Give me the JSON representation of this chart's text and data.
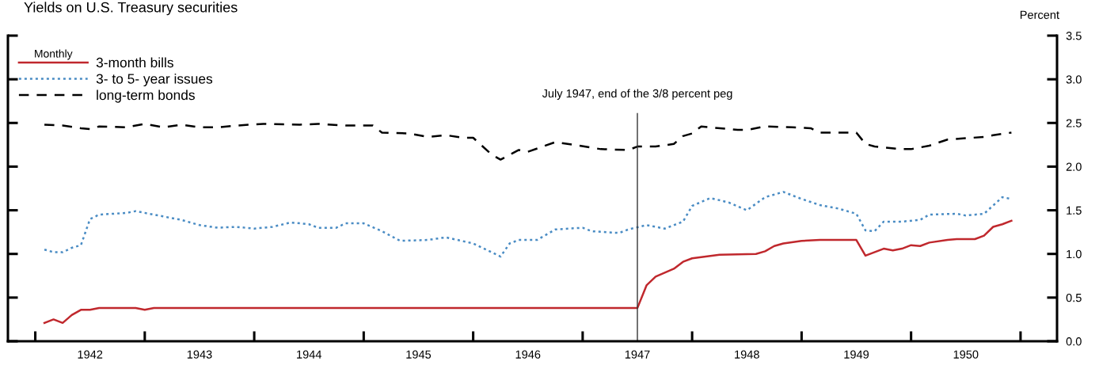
{
  "chart_data": {
    "type": "line",
    "title": "Yields on U.S. Treasury securities",
    "ylabel": "Percent",
    "legend_title": "Monthly",
    "legend": "top left",
    "grid": false,
    "marker": "none",
    "xlim": [
      "1941-10",
      "1951-05"
    ],
    "ylim": [
      0,
      3.5
    ],
    "yticks": [
      {
        "value": 0,
        "label": "0.0"
      },
      {
        "value": 0.5,
        "label": "0.5"
      },
      {
        "value": 1,
        "label": "1.0"
      },
      {
        "value": 1.5,
        "label": "1.5"
      },
      {
        "value": 2,
        "label": "2.0"
      },
      {
        "value": 2.5,
        "label": "2.5"
      },
      {
        "value": 3,
        "label": "3.0"
      },
      {
        "value": 3.5,
        "label": "3.5"
      }
    ],
    "xticks": [
      {
        "value": "1942",
        "label": null
      },
      {
        "value": "1943",
        "label": null
      },
      {
        "value": "1944",
        "label": null
      },
      {
        "value": "1945",
        "label": null
      },
      {
        "value": "1946",
        "label": null
      },
      {
        "value": "1947",
        "label": null
      },
      {
        "value": "1948",
        "label": null
      },
      {
        "value": "1949",
        "label": null
      },
      {
        "value": "1950",
        "label": null
      },
      {
        "value": "1951",
        "label": null
      },
      {
        "value": "1942-07",
        "label": "1942"
      },
      {
        "value": "1943-07",
        "label": "1943"
      },
      {
        "value": "1944-07",
        "label": "1944"
      },
      {
        "value": "1945-07",
        "label": "1945"
      },
      {
        "value": "1946-07",
        "label": "1946"
      },
      {
        "value": "1947-07",
        "label": "1947"
      },
      {
        "value": "1948-07",
        "label": "1948"
      },
      {
        "value": "1949-07",
        "label": "1949"
      },
      {
        "value": "1950-07",
        "label": "1950"
      }
    ],
    "ref_lines": [
      {
        "axis": "x",
        "value": "1947-07",
        "label": "July 1947, end of the 3/8 percent peg",
        "color": "#333333",
        "line_style": "solid"
      }
    ],
    "series": [
      {
        "name": "3-month bills",
        "color": "#c0282d",
        "line_style": "solid",
        "x": [
          "1942-02",
          "1942-03",
          "1942-04",
          "1942-05",
          "1942-06",
          "1942-07",
          "1942-08",
          "1942-12",
          "1943-01",
          "1943-02",
          "1943-09",
          "1944-02",
          "1947-07",
          "1947-08",
          "1947-09",
          "1947-11",
          "1947-12",
          "1948-01",
          "1948-04",
          "1948-08",
          "1948-09",
          "1948-10",
          "1948-11",
          "1949-01",
          "1949-03",
          "1949-06",
          "1949-07",
          "1949-08",
          "1949-10",
          "1949-11",
          "1949-12",
          "1950-01",
          "1950-02",
          "1950-03",
          "1950-05",
          "1950-06",
          "1950-08",
          "1950-09",
          "1950-10",
          "1950-11",
          "1950-12"
        ],
        "values": [
          0.21,
          0.25,
          0.21,
          0.3,
          0.36,
          0.36,
          0.38,
          0.38,
          0.36,
          0.38,
          0.38,
          0.38,
          0.38,
          0.64,
          0.74,
          0.83,
          0.91,
          0.95,
          0.99,
          1.0,
          1.03,
          1.09,
          1.12,
          1.15,
          1.16,
          1.16,
          1.16,
          0.98,
          1.06,
          1.04,
          1.06,
          1.1,
          1.09,
          1.13,
          1.16,
          1.17,
          1.17,
          1.21,
          1.31,
          1.34,
          1.38
        ]
      },
      {
        "name": "3- to 5- year issues",
        "color": "#4a8cc4",
        "line_style": "dotted",
        "x": [
          "1942-02",
          "1942-03",
          "1942-04",
          "1942-05",
          "1942-06",
          "1942-07",
          "1942-08",
          "1942-11",
          "1942-12",
          "1943-01",
          "1943-03",
          "1943-05",
          "1943-07",
          "1943-09",
          "1943-11",
          "1944-01",
          "1944-03",
          "1944-05",
          "1944-07",
          "1944-08",
          "1944-10",
          "1944-11",
          "1945-01",
          "1945-03",
          "1945-05",
          "1945-08",
          "1945-10",
          "1946-01",
          "1946-04",
          "1946-05",
          "1946-06",
          "1946-08",
          "1946-10",
          "1947-01",
          "1947-02",
          "1947-05",
          "1947-06",
          "1947-08",
          "1947-10",
          "1947-12",
          "1948-01",
          "1948-03",
          "1948-05",
          "1948-07",
          "1948-09",
          "1948-11",
          "1949-01",
          "1949-03",
          "1949-05",
          "1949-07",
          "1949-08",
          "1949-09",
          "1949-10",
          "1949-12",
          "1950-02",
          "1950-03",
          "1950-06",
          "1950-07",
          "1950-09",
          "1950-11",
          "1950-12"
        ],
        "values": [
          1.05,
          1.02,
          1.02,
          1.07,
          1.1,
          1.4,
          1.45,
          1.47,
          1.49,
          1.47,
          1.43,
          1.39,
          1.33,
          1.3,
          1.31,
          1.29,
          1.31,
          1.36,
          1.34,
          1.3,
          1.3,
          1.35,
          1.35,
          1.26,
          1.15,
          1.16,
          1.19,
          1.12,
          0.97,
          1.12,
          1.16,
          1.16,
          1.28,
          1.3,
          1.26,
          1.24,
          1.28,
          1.33,
          1.29,
          1.37,
          1.55,
          1.64,
          1.59,
          1.5,
          1.65,
          1.71,
          1.63,
          1.56,
          1.52,
          1.46,
          1.27,
          1.26,
          1.37,
          1.37,
          1.39,
          1.45,
          1.46,
          1.44,
          1.46,
          1.65,
          1.63
        ]
      },
      {
        "name": "long-term bonds",
        "color": "#000000",
        "line_style": "dashed",
        "x": [
          "1942-02",
          "1942-04",
          "1942-06",
          "1942-07",
          "1942-08",
          "1942-11",
          "1943-01",
          "1943-03",
          "1943-05",
          "1943-07",
          "1943-09",
          "1943-11",
          "1944-02",
          "1944-06",
          "1944-08",
          "1944-11",
          "1945-02",
          "1945-03",
          "1945-06",
          "1945-08",
          "1945-10",
          "1945-12",
          "1946-01",
          "1946-03",
          "1946-04",
          "1946-06",
          "1946-07",
          "1946-10",
          "1946-12",
          "1947-03",
          "1947-06",
          "1947-07",
          "1947-09",
          "1947-11",
          "1947-12",
          "1948-01",
          "1948-02",
          "1948-06",
          "1948-07",
          "1948-09",
          "1948-12",
          "1949-02",
          "1949-03",
          "1949-07",
          "1949-08",
          "1949-09",
          "1949-12",
          "1950-01",
          "1950-03",
          "1950-05",
          "1950-09",
          "1950-10",
          "1950-12"
        ],
        "values": [
          2.48,
          2.47,
          2.44,
          2.43,
          2.46,
          2.45,
          2.49,
          2.45,
          2.48,
          2.45,
          2.45,
          2.47,
          2.49,
          2.48,
          2.49,
          2.47,
          2.47,
          2.39,
          2.38,
          2.34,
          2.36,
          2.33,
          2.33,
          2.14,
          2.08,
          2.19,
          2.17,
          2.28,
          2.25,
          2.2,
          2.19,
          2.23,
          2.23,
          2.26,
          2.35,
          2.38,
          2.46,
          2.42,
          2.42,
          2.46,
          2.45,
          2.44,
          2.39,
          2.39,
          2.26,
          2.23,
          2.2,
          2.2,
          2.24,
          2.31,
          2.34,
          2.36,
          2.39
        ]
      }
    ]
  }
}
